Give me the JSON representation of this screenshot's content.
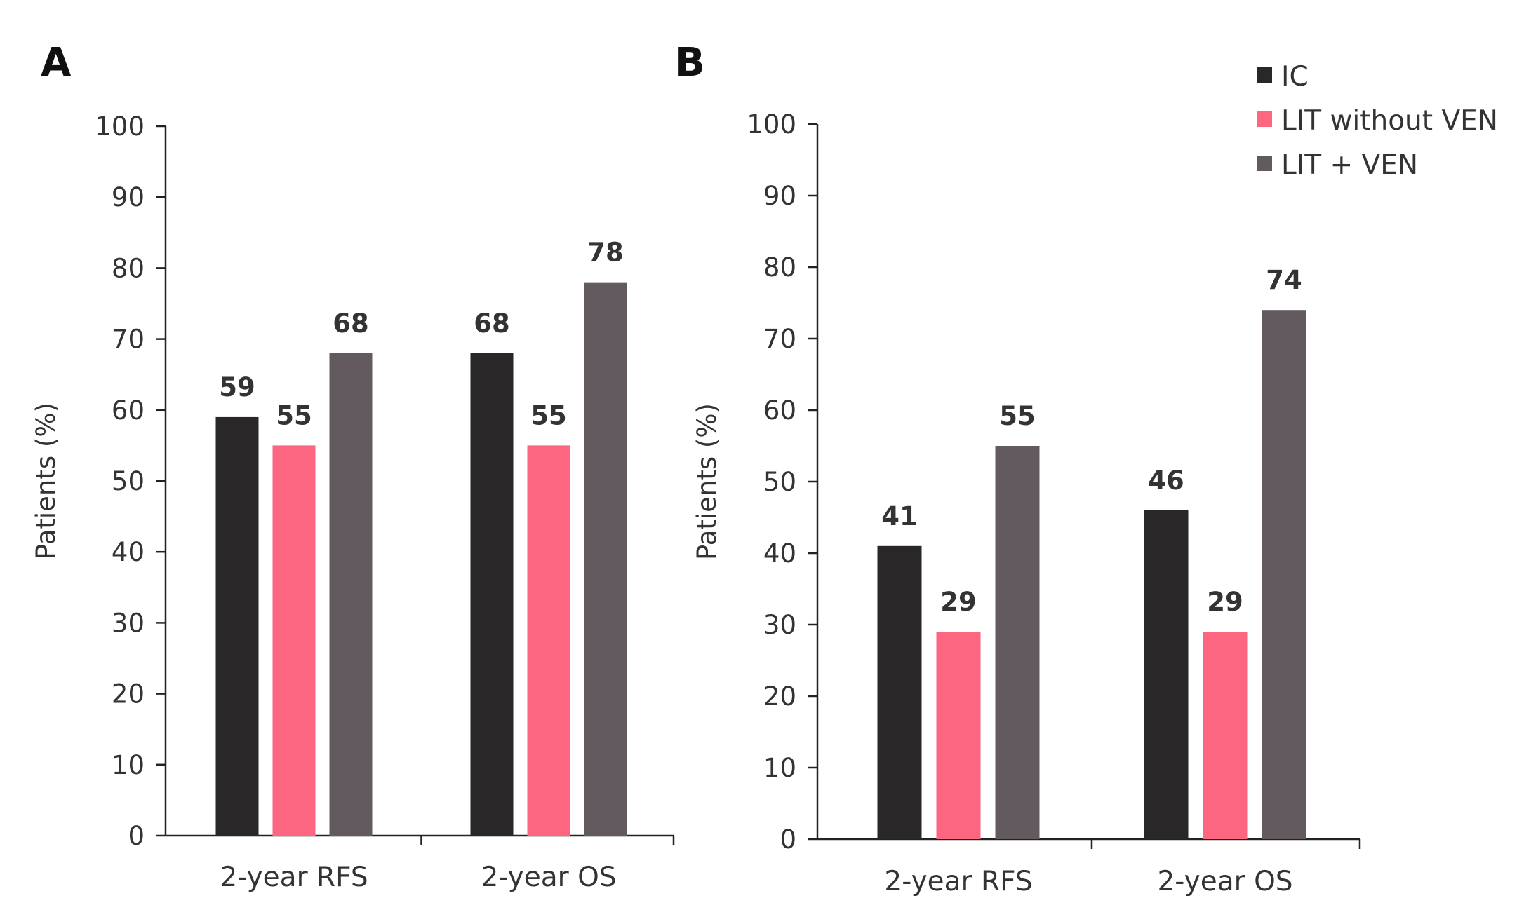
{
  "legend": {
    "items": [
      {
        "label": "IC",
        "color": "#2a2728"
      },
      {
        "label": "LIT without VEN",
        "color": "#fd6680"
      },
      {
        "label": "LIT + VEN",
        "color": "#635a5f"
      }
    ]
  },
  "chart_data": [
    {
      "type": "bar",
      "panel": "A",
      "title": "",
      "xlabel": "",
      "ylabel": "Patients (%)",
      "ylim": [
        0,
        100
      ],
      "yticks": [
        0,
        10,
        20,
        30,
        40,
        50,
        60,
        70,
        80,
        90,
        100
      ],
      "categories": [
        "2-year RFS",
        "2-year OS"
      ],
      "series": [
        {
          "name": "IC",
          "color": "#2a2728",
          "values": [
            59,
            68
          ]
        },
        {
          "name": "LIT without VEN",
          "color": "#fd6680",
          "values": [
            55,
            55
          ]
        },
        {
          "name": "LIT + VEN",
          "color": "#635a5f",
          "values": [
            68,
            78
          ]
        }
      ],
      "grid": false
    },
    {
      "type": "bar",
      "panel": "B",
      "title": "",
      "xlabel": "",
      "ylabel": "Patients (%)",
      "ylim": [
        0,
        100
      ],
      "yticks": [
        0,
        10,
        20,
        30,
        40,
        50,
        60,
        70,
        80,
        90,
        100
      ],
      "categories": [
        "2-year RFS",
        "2-year OS"
      ],
      "series": [
        {
          "name": "IC",
          "color": "#2a2728",
          "values": [
            41,
            46
          ]
        },
        {
          "name": "LIT without VEN",
          "color": "#fd6680",
          "values": [
            29,
            29
          ]
        },
        {
          "name": "LIT + VEN",
          "color": "#635a5f",
          "values": [
            55,
            74
          ]
        }
      ],
      "grid": false,
      "legend_position": "top-right"
    }
  ]
}
